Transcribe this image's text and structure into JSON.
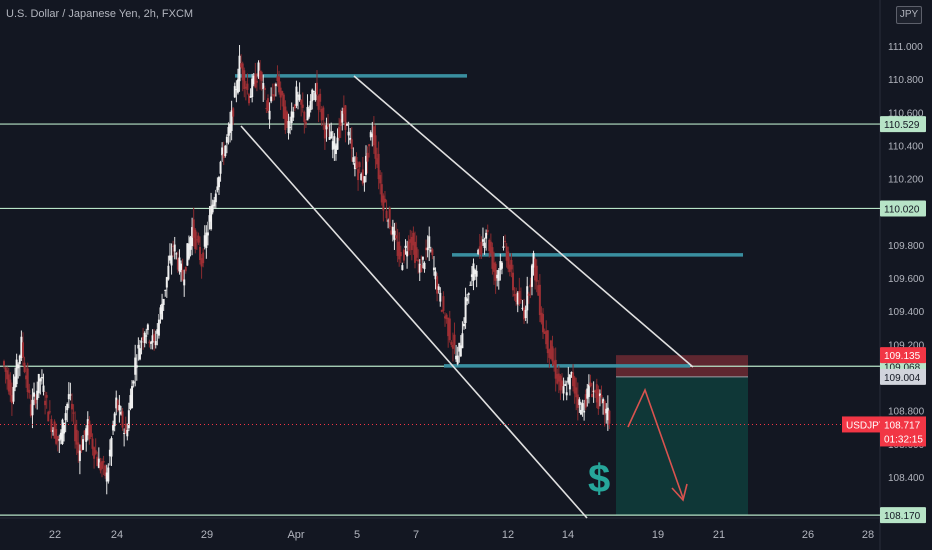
{
  "header": {
    "title": "U.S. Dollar / Japanese Yen, 2h, FXCM",
    "currency_badge": "JPY"
  },
  "colors": {
    "background": "#131722",
    "candle": "#d1d4dc",
    "support_line": "#b7e4c7",
    "channel": "#e0e0e0",
    "zone_line": "#3a8fa0",
    "stop_zone": "#7a2e35",
    "target_zone": "#0f3b3a",
    "price_line": "#f23645",
    "arrow": "#d9534f",
    "dollar": "#26a69a"
  },
  "icons": {
    "dollar_sign": "$",
    "down_arrow": "zigzag-down-arrow"
  },
  "chart_data": {
    "type": "candlestick",
    "title": "U.S. Dollar / Japanese Yen, 2h, FXCM",
    "symbol": "USDJPY",
    "ylim": [
      108.17,
      111.1
    ],
    "x_ticks": [
      "22",
      "24",
      "29",
      "Apr",
      "5",
      "7",
      "12",
      "14",
      "19",
      "21",
      "26",
      "28"
    ],
    "y_ticks": [
      "108.400",
      "108.600",
      "108.800",
      "109.000",
      "109.200",
      "109.400",
      "109.600",
      "109.800",
      "110.000",
      "110.200",
      "110.400",
      "110.600",
      "110.800",
      "111.000"
    ],
    "levels": [
      {
        "value": 110.529,
        "label": "110.529",
        "style": "support"
      },
      {
        "value": 110.02,
        "label": "110.020",
        "style": "support"
      },
      {
        "value": 109.068,
        "label": "109.068",
        "style": "support"
      },
      {
        "value": 108.17,
        "label": "108.170",
        "style": "support"
      }
    ],
    "zone_lines": [
      110.82,
      109.74,
      109.07
    ],
    "trade": {
      "stop": 109.135,
      "stop_label": "109.135",
      "entry": 109.004,
      "entry_label": "109.004",
      "target": 108.17
    },
    "current_price": {
      "symbol": "USDJPY",
      "price": "108.717",
      "countdown": "01:32:15",
      "value": 108.717
    },
    "channel_lines": [
      {
        "from": [
          "Mar 30 09:00",
          110.52
        ],
        "to": [
          "Apr 14 19:00",
          108.17
        ]
      },
      {
        "from": [
          "Apr 1 01:00",
          110.84
        ],
        "to": [
          "Apr 19 01:00",
          109.07
        ]
      }
    ],
    "ohlc_path": [
      109.1,
      108.9,
      109.2,
      108.8,
      109.0,
      108.75,
      108.6,
      108.9,
      108.55,
      108.7,
      108.5,
      108.4,
      108.85,
      108.65,
      109.1,
      109.3,
      109.2,
      109.5,
      109.8,
      109.6,
      109.9,
      109.7,
      110.0,
      110.3,
      110.5,
      110.9,
      110.7,
      110.85,
      110.6,
      110.8,
      110.5,
      110.7,
      110.55,
      110.75,
      110.5,
      110.4,
      110.6,
      110.3,
      110.2,
      110.5,
      110.1,
      109.9,
      109.7,
      109.85,
      109.65,
      109.8,
      109.5,
      109.3,
      109.1,
      109.5,
      109.7,
      109.9,
      109.6,
      109.8,
      109.5,
      109.4,
      109.7,
      109.3,
      109.1,
      108.9,
      109.0,
      108.8,
      108.95,
      108.85,
      108.75
    ]
  }
}
